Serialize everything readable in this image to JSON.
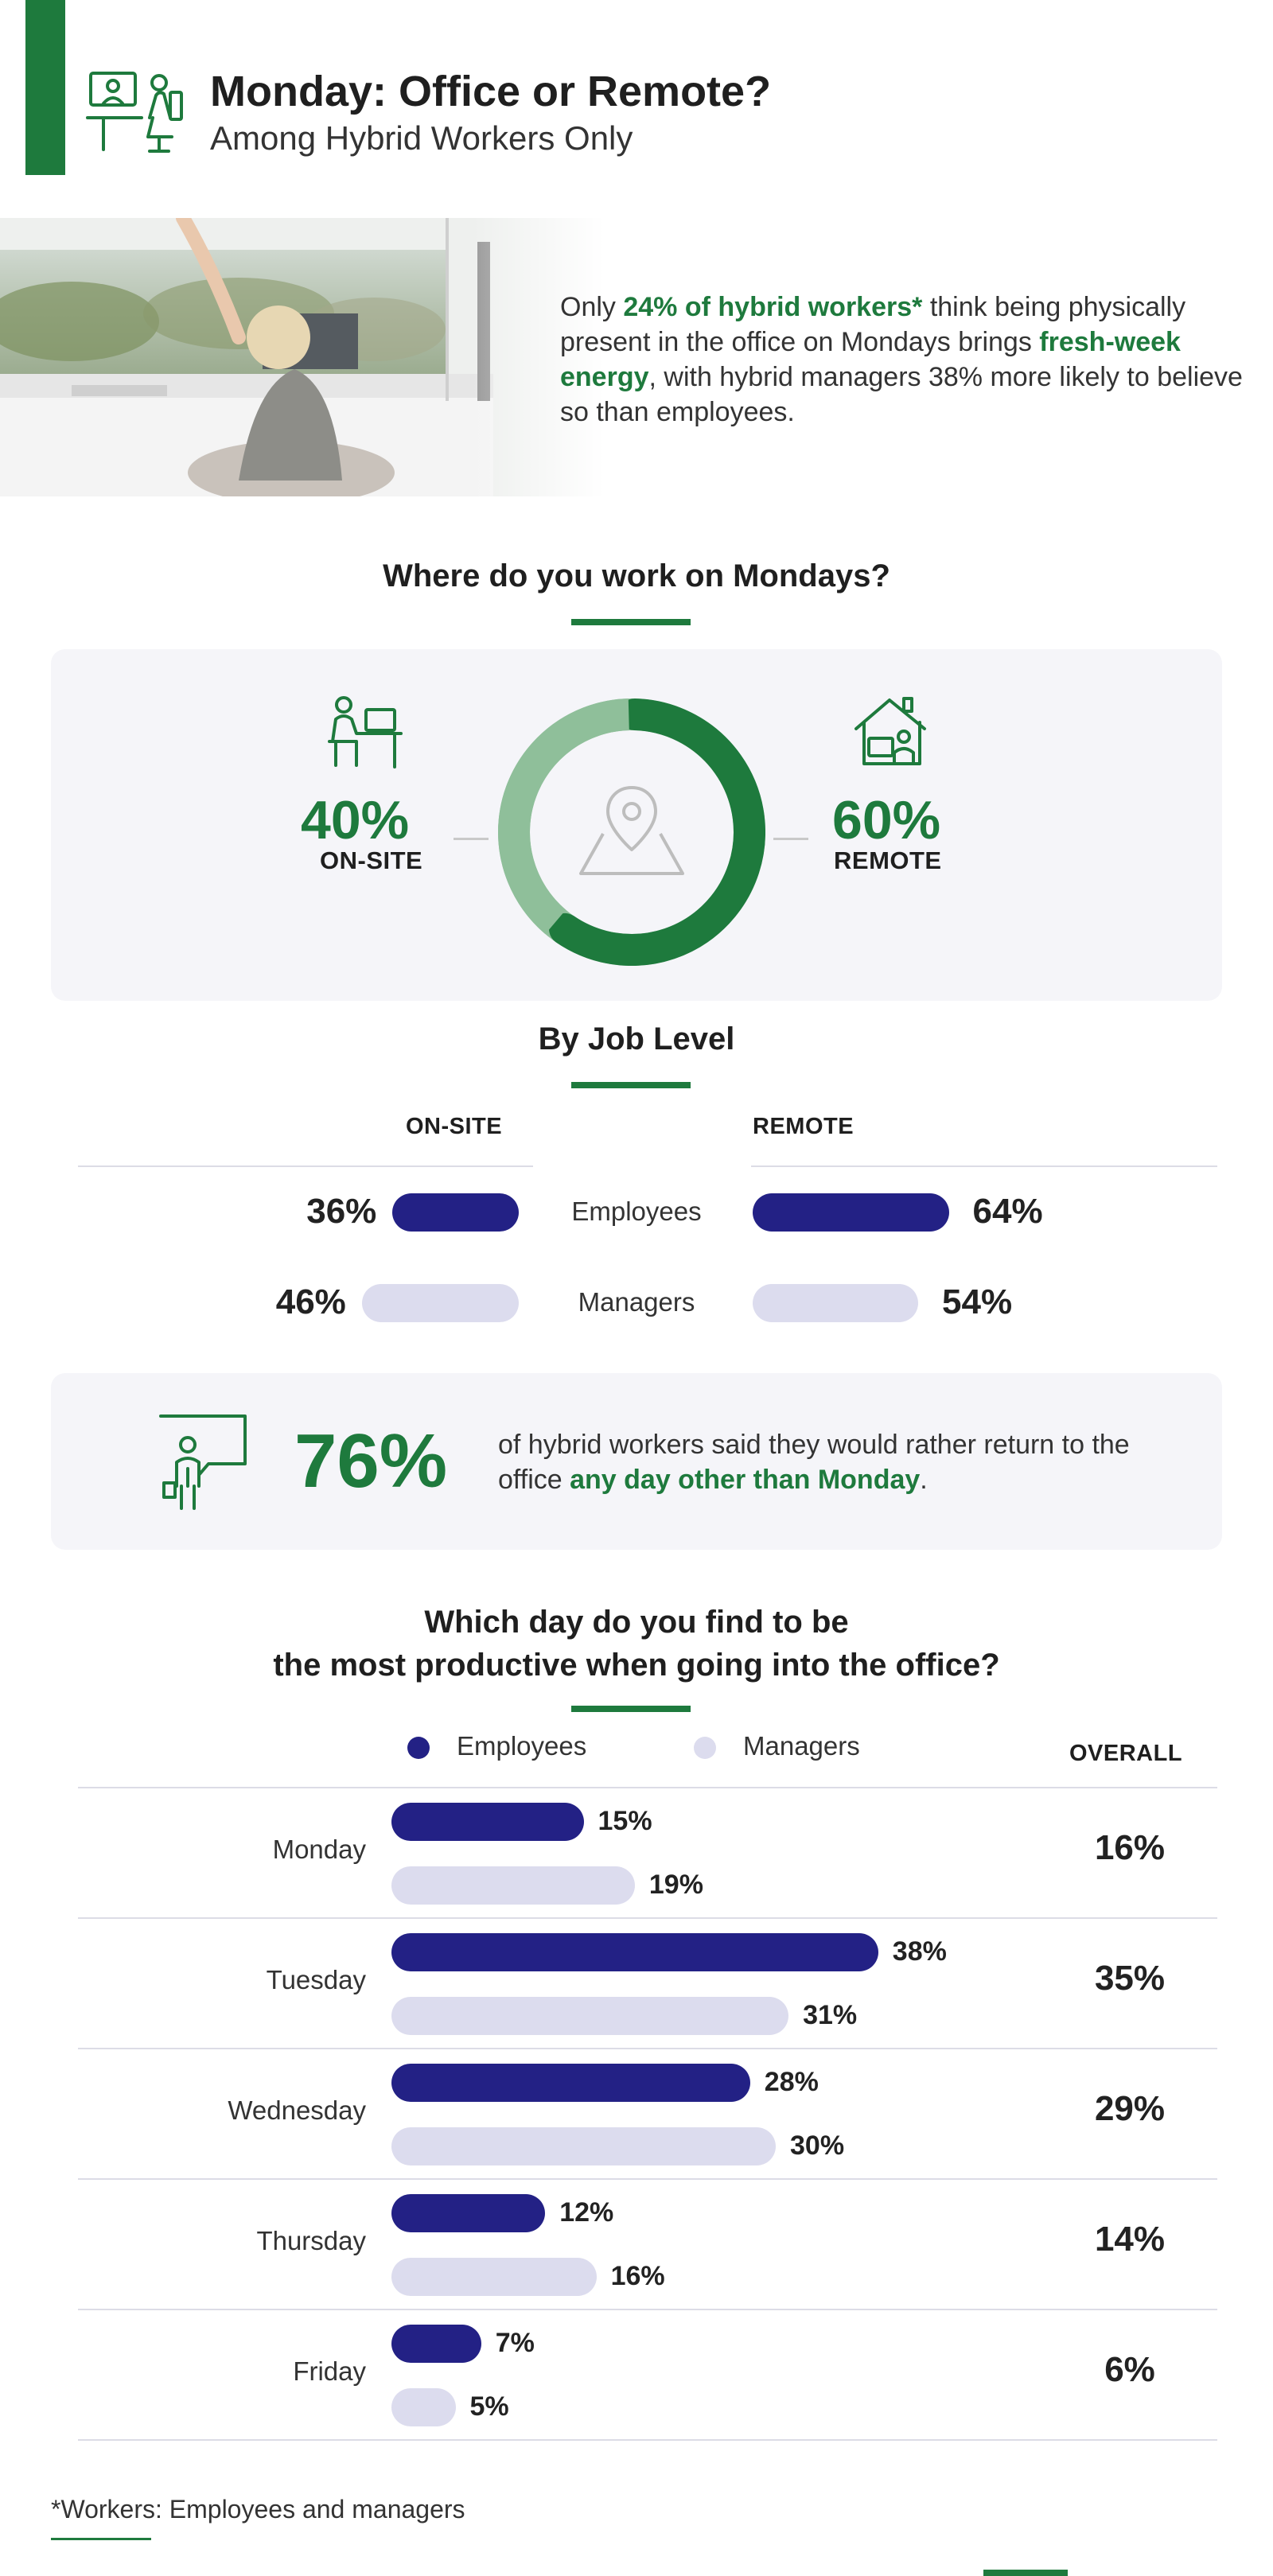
{
  "header": {
    "title": "Monday: Office or Remote?",
    "subtitle": "Among Hybrid Workers Only",
    "icon": "desk-worker-icon"
  },
  "intro": {
    "p1": "Only ",
    "h1": "24% of hybrid workers*",
    "p2": " think being physically present in the office on Mondays brings ",
    "h2": "fresh-week energy",
    "p3": ", with hybrid managers 38% more likely to believe so than employees."
  },
  "colors": {
    "green": "#1e7a3d",
    "light_green": "#8fbf9a",
    "employees": "#232185",
    "managers": "#dcdcee"
  },
  "chart_data": [
    {
      "type": "pie",
      "title": "Where do you work on Mondays?",
      "slices": [
        {
          "label": "ON-SITE",
          "value": 40,
          "display": "40%"
        },
        {
          "label": "REMOTE",
          "value": 60,
          "display": "60%"
        }
      ],
      "icons": [
        "on-site-worker-icon",
        "remote-home-icon",
        "location-pin-icon"
      ]
    },
    {
      "type": "bar",
      "title": "By Job Level",
      "columns": [
        "ON-SITE",
        "REMOTE"
      ],
      "rows": [
        {
          "label": "Employees",
          "onsite": 36,
          "remote": 64,
          "onsite_display": "36%",
          "remote_display": "64%"
        },
        {
          "label": "Managers",
          "onsite": 46,
          "remote": 54,
          "onsite_display": "46%",
          "remote_display": "54%"
        }
      ]
    },
    {
      "type": "bar",
      "title_line1": "Which day do you find to be",
      "title_line2": "the most productive when going into the office?",
      "series_names": [
        "Employees",
        "Managers"
      ],
      "overall_label": "OVERALL",
      "xlim": [
        0,
        40
      ],
      "days": [
        {
          "day": "Monday",
          "employees": 15,
          "managers": 19,
          "overall": 16,
          "emp_display": "15%",
          "mgr_display": "19%",
          "overall_display": "16%"
        },
        {
          "day": "Tuesday",
          "employees": 38,
          "managers": 31,
          "overall": 35,
          "emp_display": "38%",
          "mgr_display": "31%",
          "overall_display": "35%"
        },
        {
          "day": "Wednesday",
          "employees": 28,
          "managers": 30,
          "overall": 29,
          "emp_display": "28%",
          "mgr_display": "30%",
          "overall_display": "29%"
        },
        {
          "day": "Thursday",
          "employees": 12,
          "managers": 16,
          "overall": 14,
          "emp_display": "12%",
          "mgr_display": "16%",
          "overall_display": "14%"
        },
        {
          "day": "Friday",
          "employees": 7,
          "managers": 5,
          "overall": 6,
          "emp_display": "7%",
          "mgr_display": "5%",
          "overall_display": "6%"
        }
      ]
    }
  ],
  "callout": {
    "value": "76%",
    "p1": "of hybrid workers said they would rather return to the office ",
    "h1": "any day other than Monday",
    "p2": ".",
    "icon": "presenter-board-icon"
  },
  "footnote": "*Workers: Employees and managers"
}
